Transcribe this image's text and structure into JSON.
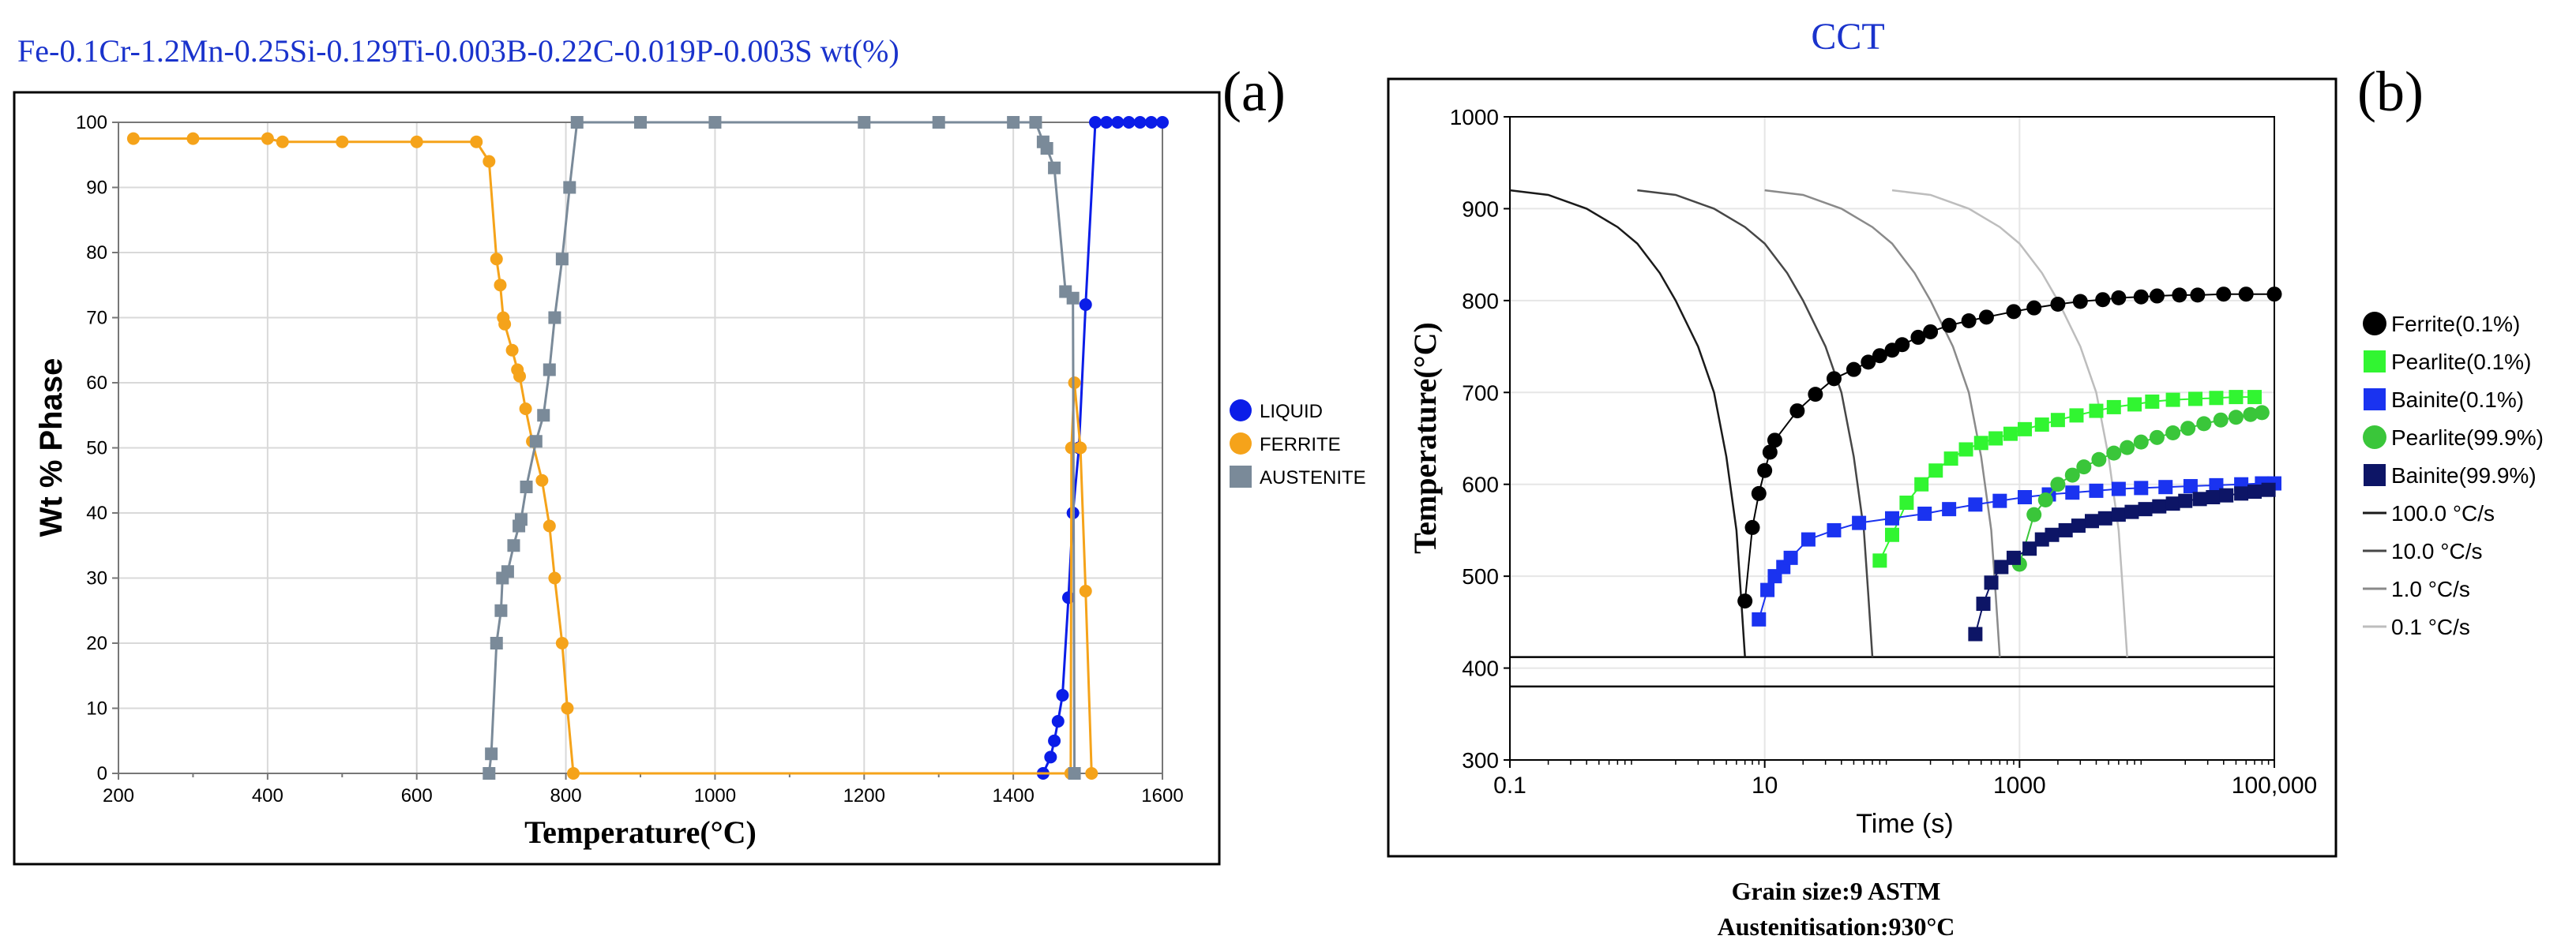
{
  "chart_data": [
    {
      "type": "line",
      "panel_tag": "(a)",
      "title": "Fe-0.1Cr-1.2Mn-0.25Si-0.129Ti-0.003B-0.22C-0.019P-0.003S wt(%)",
      "xlabel": "Temperature(°C)",
      "ylabel": "Wt % Phase",
      "xlim": [
        200,
        1600
      ],
      "ylim": [
        0,
        100
      ],
      "xticks": [
        "200",
        "400",
        "600",
        "800",
        "1000",
        "1200",
        "1400",
        "1600"
      ],
      "yticks": [
        "0",
        "10",
        "20",
        "30",
        "40",
        "50",
        "60",
        "70",
        "80",
        "90",
        "100"
      ],
      "grid": true,
      "legend_position": "right",
      "series": [
        {
          "name": "LIQUID",
          "color": "#0b1de8",
          "marker": "circle",
          "points": [
            [
              1440,
              0
            ],
            [
              1450,
              2.5
            ],
            [
              1455,
              5
            ],
            [
              1460,
              8
            ],
            [
              1466,
              12
            ],
            [
              1474,
              27
            ],
            [
              1480,
              40
            ],
            [
              1488,
              50
            ],
            [
              1497,
              72
            ],
            [
              1510,
              100
            ],
            [
              1525,
              100
            ],
            [
              1540,
              100
            ],
            [
              1555,
              100
            ],
            [
              1570,
              100
            ],
            [
              1585,
              100
            ],
            [
              1600,
              100
            ]
          ]
        },
        {
          "name": "FERRITE",
          "color": "#f5a31a",
          "marker": "circle",
          "points": [
            [
              220,
              97.5
            ],
            [
              300,
              97.5
            ],
            [
              400,
              97.5
            ],
            [
              420,
              97
            ],
            [
              500,
              97
            ],
            [
              600,
              97
            ],
            [
              680,
              97
            ],
            [
              697,
              94
            ],
            [
              707,
              79
            ],
            [
              712,
              75
            ],
            [
              716,
              70
            ],
            [
              718,
              69
            ],
            [
              728,
              65
            ],
            [
              735,
              62
            ],
            [
              738,
              61
            ],
            [
              746,
              56
            ],
            [
              755,
              51
            ],
            [
              768,
              45
            ],
            [
              778,
              38
            ],
            [
              785,
              30
            ],
            [
              795,
              20
            ],
            [
              802,
              10
            ],
            [
              810,
              0
            ],
            [
              1477,
              0
            ],
            [
              1478,
              50
            ],
            [
              1482,
              60
            ],
            [
              1490,
              50
            ],
            [
              1497,
              28
            ],
            [
              1505,
              0
            ]
          ]
        },
        {
          "name": "AUSTENITE",
          "color": "#7a8a99",
          "marker": "square",
          "points": [
            [
              697,
              0
            ],
            [
              700,
              3
            ],
            [
              707,
              20
            ],
            [
              713,
              25
            ],
            [
              715,
              30
            ],
            [
              722,
              31
            ],
            [
              730,
              35
            ],
            [
              737,
              38
            ],
            [
              740,
              39
            ],
            [
              747,
              44
            ],
            [
              760,
              51
            ],
            [
              770,
              55
            ],
            [
              778,
              62
            ],
            [
              785,
              70
            ],
            [
              795,
              79
            ],
            [
              805,
              90
            ],
            [
              815,
              100
            ],
            [
              900,
              100
            ],
            [
              1000,
              100
            ],
            [
              1200,
              100
            ],
            [
              1300,
              100
            ],
            [
              1400,
              100
            ],
            [
              1430,
              100
            ],
            [
              1440,
              97
            ],
            [
              1445,
              96
            ],
            [
              1455,
              93
            ],
            [
              1470,
              74
            ],
            [
              1480,
              73
            ],
            [
              1482,
              0
            ]
          ]
        }
      ]
    },
    {
      "type": "line",
      "panel_tag": "(b)",
      "title": "CCT",
      "xlabel": "Time (s)",
      "ylabel": "Temperature(°C)",
      "xscale": "log",
      "xlim": [
        0.1,
        100000
      ],
      "ylim": [
        300,
        1000
      ],
      "xticks": [
        "0.1",
        "10",
        "1000",
        "100,000"
      ],
      "yticks": [
        "300",
        "400",
        "500",
        "600",
        "700",
        "800",
        "900",
        "1000"
      ],
      "grid": true,
      "legend_position": "right",
      "horizontal_lines": [
        412,
        380
      ],
      "captions": [
        "Grain size:9 ASTM",
        "Austenitisation:930°C"
      ],
      "series": [
        {
          "name": "Ferrite(0.1%)",
          "color": "#000000",
          "marker": "circle",
          "kind": "marker",
          "points": [
            [
              7,
              473
            ],
            [
              8,
              553
            ],
            [
              9,
              590
            ],
            [
              10,
              615
            ],
            [
              11,
              635
            ],
            [
              12,
              648
            ],
            [
              18,
              680
            ],
            [
              25,
              698
            ],
            [
              35,
              715
            ],
            [
              50,
              725
            ],
            [
              65,
              733
            ],
            [
              80,
              740
            ],
            [
              100,
              746
            ],
            [
              120,
              752
            ],
            [
              160,
              760
            ],
            [
              200,
              766
            ],
            [
              280,
              773
            ],
            [
              400,
              778
            ],
            [
              550,
              782
            ],
            [
              900,
              788
            ],
            [
              1300,
              792
            ],
            [
              2000,
              796
            ],
            [
              3000,
              799
            ],
            [
              4500,
              801
            ],
            [
              6000,
              803
            ],
            [
              9000,
              804
            ],
            [
              12000,
              805
            ],
            [
              18000,
              806
            ],
            [
              25000,
              806
            ],
            [
              40000,
              807
            ],
            [
              60000,
              807
            ],
            [
              100000,
              807
            ]
          ]
        },
        {
          "name": "Pearlite(0.1%)",
          "color": "#31f531",
          "marker": "square",
          "kind": "marker",
          "points": [
            [
              80,
              517
            ],
            [
              100,
              545
            ],
            [
              130,
              580
            ],
            [
              170,
              600
            ],
            [
              220,
              615
            ],
            [
              290,
              628
            ],
            [
              380,
              638
            ],
            [
              500,
              645
            ],
            [
              650,
              650
            ],
            [
              850,
              655
            ],
            [
              1100,
              660
            ],
            [
              1500,
              665
            ],
            [
              2000,
              670
            ],
            [
              2800,
              675
            ],
            [
              4000,
              680
            ],
            [
              5500,
              684
            ],
            [
              8000,
              687
            ],
            [
              11000,
              690
            ],
            [
              16000,
              692
            ],
            [
              24000,
              693
            ],
            [
              35000,
              694
            ],
            [
              50000,
              695
            ],
            [
              70000,
              695
            ]
          ]
        },
        {
          "name": "Bainite(0.1%)",
          "color": "#1a33f0",
          "marker": "square",
          "kind": "marker",
          "points": [
            [
              9,
              453
            ],
            [
              10.5,
              485
            ],
            [
              12,
              500
            ],
            [
              14,
              510
            ],
            [
              16,
              520
            ],
            [
              22,
              540
            ],
            [
              35,
              550
            ],
            [
              55,
              558
            ],
            [
              100,
              563
            ],
            [
              180,
              568
            ],
            [
              280,
              573
            ],
            [
              450,
              578
            ],
            [
              700,
              582
            ],
            [
              1100,
              586
            ],
            [
              1700,
              589
            ],
            [
              2600,
              591
            ],
            [
              4000,
              593
            ],
            [
              6000,
              595
            ],
            [
              9000,
              596
            ],
            [
              14000,
              597
            ],
            [
              22000,
              598
            ],
            [
              35000,
              599
            ],
            [
              55000,
              600
            ],
            [
              80000,
              601
            ],
            [
              100000,
              601
            ]
          ]
        },
        {
          "name": "Pearlite(99.9%)",
          "color": "#3ac63a",
          "marker": "circle",
          "kind": "marker",
          "points": [
            [
              1000,
              513
            ],
            [
              1300,
              567
            ],
            [
              1600,
              583
            ],
            [
              2000,
              600
            ],
            [
              2600,
              610
            ],
            [
              3200,
              619
            ],
            [
              4200,
              627
            ],
            [
              5500,
              634
            ],
            [
              7000,
              640
            ],
            [
              9000,
              646
            ],
            [
              12000,
              651
            ],
            [
              16000,
              656
            ],
            [
              21000,
              661
            ],
            [
              28000,
              666
            ],
            [
              38000,
              670
            ],
            [
              50000,
              673
            ],
            [
              65000,
              676
            ],
            [
              80000,
              678
            ]
          ]
        },
        {
          "name": "Bainite(99.9%)",
          "color": "#0d1566",
          "marker": "square",
          "kind": "marker",
          "points": [
            [
              450,
              437
            ],
            [
              520,
              470
            ],
            [
              600,
              493
            ],
            [
              720,
              510
            ],
            [
              900,
              520
            ],
            [
              1200,
              530
            ],
            [
              1500,
              540
            ],
            [
              1800,
              545
            ],
            [
              2300,
              550
            ],
            [
              2900,
              555
            ],
            [
              3700,
              560
            ],
            [
              4700,
              563
            ],
            [
              6000,
              567
            ],
            [
              7600,
              570
            ],
            [
              9700,
              573
            ],
            [
              12500,
              576
            ],
            [
              16000,
              579
            ],
            [
              20000,
              582
            ],
            [
              26000,
              584
            ],
            [
              33000,
              586
            ],
            [
              42000,
              588
            ],
            [
              55000,
              590
            ],
            [
              70000,
              592
            ],
            [
              90000,
              594
            ]
          ]
        },
        {
          "name": "100.0 °C/s",
          "color": "#1a1a1a",
          "marker": "line",
          "kind": "line",
          "points": [
            [
              0.1,
              920
            ],
            [
              0.2,
              915
            ],
            [
              0.4,
              900
            ],
            [
              0.7,
              880
            ],
            [
              1,
              862
            ],
            [
              1.5,
              830
            ],
            [
              2,
              800
            ],
            [
              3,
              750
            ],
            [
              4,
              700
            ],
            [
              5,
              630
            ],
            [
              6,
              550
            ],
            [
              6.5,
              480
            ],
            [
              7,
              412
            ]
          ]
        },
        {
          "name": "10.0 °C/s",
          "color": "#474747",
          "marker": "line",
          "kind": "line",
          "points": [
            [
              1,
              920
            ],
            [
              2,
              915
            ],
            [
              4,
              900
            ],
            [
              7,
              880
            ],
            [
              10,
              862
            ],
            [
              15,
              830
            ],
            [
              20,
              800
            ],
            [
              30,
              750
            ],
            [
              40,
              700
            ],
            [
              50,
              630
            ],
            [
              60,
              550
            ],
            [
              65,
              480
            ],
            [
              70,
              412
            ]
          ]
        },
        {
          "name": "1.0 °C/s",
          "color": "#8a8a8a",
          "marker": "line",
          "kind": "line",
          "points": [
            [
              10,
              920
            ],
            [
              20,
              915
            ],
            [
              40,
              900
            ],
            [
              70,
              880
            ],
            [
              100,
              862
            ],
            [
              150,
              830
            ],
            [
              200,
              800
            ],
            [
              300,
              750
            ],
            [
              400,
              700
            ],
            [
              500,
              630
            ],
            [
              600,
              550
            ],
            [
              650,
              480
            ],
            [
              700,
              412
            ]
          ]
        },
        {
          "name": "0.1 °C/s",
          "color": "#bdbdbd",
          "marker": "line",
          "kind": "line",
          "points": [
            [
              100,
              920
            ],
            [
              200,
              915
            ],
            [
              400,
              900
            ],
            [
              700,
              880
            ],
            [
              1000,
              862
            ],
            [
              1500,
              830
            ],
            [
              2000,
              800
            ],
            [
              3000,
              750
            ],
            [
              4000,
              700
            ],
            [
              5000,
              630
            ],
            [
              6000,
              550
            ],
            [
              6500,
              480
            ],
            [
              7000,
              412
            ]
          ]
        }
      ]
    }
  ]
}
